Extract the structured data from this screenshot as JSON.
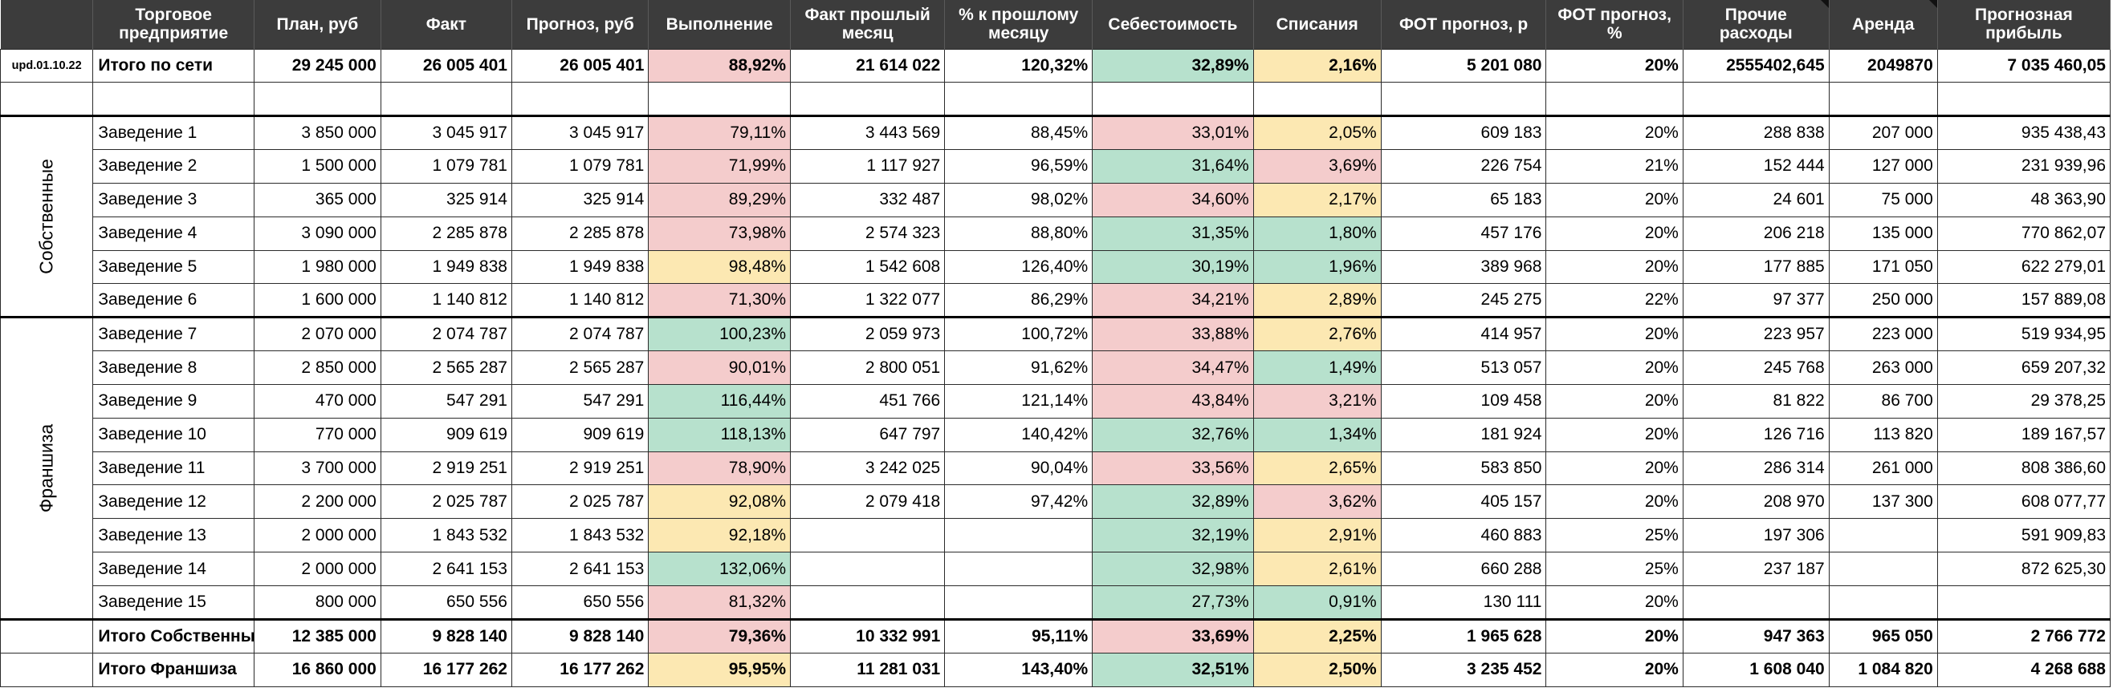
{
  "headers": [
    "",
    "Торговое предприятие",
    "План, руб",
    "Факт",
    "Прогноз, руб",
    "Выполнение",
    "Факт прошлый месяц",
    "% к прошлому месяцу",
    "Себестоимость",
    "Списания",
    "ФОТ прогноз, р",
    "ФОТ прогноз, %",
    "Прочие расходы",
    "Аренда",
    "Прогнозная прибыль"
  ],
  "total": {
    "upd": "upd.01.10.22",
    "cells": [
      "Итого по сети",
      "29 245 000",
      "26 005 401",
      "26 005 401",
      "88,92%",
      "21 614 022",
      "120,32%",
      "32,89%",
      "2,16%",
      "5 201 080",
      "20%",
      "2555402,645",
      "2049870",
      "7 035 460,05"
    ]
  },
  "groups": [
    {
      "label": "Собственные",
      "rows": [
        [
          "Заведение 1",
          "3 850 000",
          "3 045 917",
          "3 045 917",
          "79,11%",
          "3 443 569",
          "88,45%",
          "33,01%",
          "2,05%",
          "609 183",
          "20%",
          "288 838",
          "207 000",
          "935 438,43"
        ],
        [
          "Заведение 2",
          "1 500 000",
          "1 079 781",
          "1 079 781",
          "71,99%",
          "1 117 927",
          "96,59%",
          "31,64%",
          "3,69%",
          "226 754",
          "21%",
          "152 444",
          "127 000",
          "231 939,96"
        ],
        [
          "Заведение 3",
          "365 000",
          "325 914",
          "325 914",
          "89,29%",
          "332 487",
          "98,02%",
          "34,60%",
          "2,17%",
          "65 183",
          "20%",
          "24 601",
          "75 000",
          "48 363,90"
        ],
        [
          "Заведение 4",
          "3 090 000",
          "2 285 878",
          "2 285 878",
          "73,98%",
          "2 574 323",
          "88,80%",
          "31,35%",
          "1,80%",
          "457 176",
          "20%",
          "206 218",
          "135 000",
          "770 862,07"
        ],
        [
          "Заведение 5",
          "1 980 000",
          "1 949 838",
          "1 949 838",
          "98,48%",
          "1 542 608",
          "126,40%",
          "30,19%",
          "1,96%",
          "389 968",
          "20%",
          "177 885",
          "171 050",
          "622 279,01"
        ],
        [
          "Заведение 6",
          "1 600 000",
          "1 140 812",
          "1 140 812",
          "71,30%",
          "1 322 077",
          "86,29%",
          "34,21%",
          "2,89%",
          "245 275",
          "22%",
          "97 377",
          "250 000",
          "157 889,08"
        ]
      ]
    },
    {
      "label": "Франшиза",
      "rows": [
        [
          "Заведение 7",
          "2 070 000",
          "2 074 787",
          "2 074 787",
          "100,23%",
          "2 059 973",
          "100,72%",
          "33,88%",
          "2,76%",
          "414 957",
          "20%",
          "223 957",
          "223 000",
          "519 934,95"
        ],
        [
          "Заведение 8",
          "2 850 000",
          "2 565 287",
          "2 565 287",
          "90,01%",
          "2 800 051",
          "91,62%",
          "34,47%",
          "1,49%",
          "513 057",
          "20%",
          "245 768",
          "263 000",
          "659 207,32"
        ],
        [
          "Заведение 9",
          "470 000",
          "547 291",
          "547 291",
          "116,44%",
          "451 766",
          "121,14%",
          "43,84%",
          "3,21%",
          "109 458",
          "20%",
          "81 822",
          "86 700",
          "29 378,25"
        ],
        [
          "Заведение 10",
          "770 000",
          "909 619",
          "909 619",
          "118,13%",
          "647 797",
          "140,42%",
          "32,76%",
          "1,34%",
          "181 924",
          "20%",
          "126 716",
          "113 820",
          "189 167,57"
        ],
        [
          "Заведение 11",
          "3 700 000",
          "2 919 251",
          "2 919 251",
          "78,90%",
          "3 242 025",
          "90,04%",
          "33,56%",
          "2,65%",
          "583 850",
          "20%",
          "286 314",
          "261 000",
          "808 386,60"
        ],
        [
          "Заведение 12",
          "2 200 000",
          "2 025 787",
          "2 025 787",
          "92,08%",
          "2 079 418",
          "97,42%",
          "32,89%",
          "3,62%",
          "405 157",
          "20%",
          "208 970",
          "137 300",
          "608 077,77"
        ],
        [
          "Заведение 13",
          "2 000 000",
          "1 843 532",
          "1 843 532",
          "92,18%",
          "",
          "",
          "32,19%",
          "2,91%",
          "460 883",
          "25%",
          "197 306",
          "",
          "591 909,83"
        ],
        [
          "Заведение 14",
          "2 000 000",
          "2 641 153",
          "2 641 153",
          "132,06%",
          "",
          "",
          "32,98%",
          "2,61%",
          "660 288",
          "25%",
          "237 187",
          "",
          "872 625,30"
        ],
        [
          "Заведение 15",
          "800 000",
          "650 556",
          "650 556",
          "81,32%",
          "",
          "",
          "27,73%",
          "0,91%",
          "130 111",
          "20%",
          "",
          "",
          ""
        ]
      ]
    }
  ],
  "subtotals": [
    [
      "Итого Собственные",
      "12 385 000",
      "9 828 140",
      "9 828 140",
      "79,36%",
      "10 332 991",
      "95,11%",
      "33,69%",
      "2,25%",
      "1 965 628",
      "20%",
      "947 363",
      "965 050",
      "2 766 772"
    ],
    [
      "Итого Франшиза",
      "16 860 000",
      "16 177 262",
      "16 177 262",
      "95,95%",
      "11 281 031",
      "143,40%",
      "32,51%",
      "2,50%",
      "3 235 452",
      "20%",
      "1 608 040",
      "1 084 820",
      "4 268 688"
    ]
  ],
  "colors": {
    "green": "#b7e1cd",
    "red": "#f4cccc",
    "yellow": "#fce8b2",
    "header_bg": "#3c3c3c"
  },
  "fill_classes": {
    "total": [
      "",
      "",
      "",
      "",
      "r",
      "",
      "",
      "g",
      "y",
      "",
      "",
      "",
      "",
      ""
    ],
    "rows": [
      [
        "",
        "",
        "",
        "",
        "r",
        "",
        "",
        "r",
        "y",
        "",
        "",
        "",
        "",
        ""
      ],
      [
        "",
        "",
        "",
        "",
        "r",
        "",
        "",
        "g",
        "r",
        "",
        "",
        "",
        "",
        ""
      ],
      [
        "",
        "",
        "",
        "",
        "r",
        "",
        "",
        "r",
        "y",
        "",
        "",
        "",
        "",
        ""
      ],
      [
        "",
        "",
        "",
        "",
        "r",
        "",
        "",
        "g",
        "g",
        "",
        "",
        "",
        "",
        ""
      ],
      [
        "",
        "",
        "",
        "",
        "y",
        "",
        "",
        "g",
        "g",
        "",
        "",
        "",
        "",
        ""
      ],
      [
        "",
        "",
        "",
        "",
        "r",
        "",
        "",
        "r",
        "y",
        "",
        "",
        "",
        "",
        ""
      ],
      [
        "",
        "",
        "",
        "",
        "g",
        "",
        "",
        "r",
        "y",
        "",
        "",
        "",
        "",
        ""
      ],
      [
        "",
        "",
        "",
        "",
        "r",
        "",
        "",
        "r",
        "g",
        "",
        "",
        "",
        "",
        ""
      ],
      [
        "",
        "",
        "",
        "",
        "g",
        "",
        "",
        "r",
        "r",
        "",
        "",
        "",
        "",
        ""
      ],
      [
        "",
        "",
        "",
        "",
        "g",
        "",
        "",
        "g",
        "g",
        "",
        "",
        "",
        "",
        ""
      ],
      [
        "",
        "",
        "",
        "",
        "r",
        "",
        "",
        "r",
        "y",
        "",
        "",
        "",
        "",
        ""
      ],
      [
        "",
        "",
        "",
        "",
        "y",
        "",
        "",
        "g",
        "r",
        "",
        "",
        "",
        "",
        ""
      ],
      [
        "",
        "",
        "",
        "",
        "y",
        "",
        "",
        "g",
        "y",
        "",
        "",
        "",
        "",
        ""
      ],
      [
        "",
        "",
        "",
        "",
        "g",
        "",
        "",
        "g",
        "y",
        "",
        "",
        "",
        "",
        ""
      ],
      [
        "",
        "",
        "",
        "",
        "r",
        "",
        "",
        "g",
        "g",
        "",
        "",
        "",
        "",
        ""
      ]
    ],
    "subtotals": [
      [
        "",
        "",
        "",
        "",
        "r",
        "",
        "",
        "r",
        "y",
        "",
        "",
        "",
        "",
        ""
      ],
      [
        "",
        "",
        "",
        "",
        "y",
        "",
        "",
        "g",
        "y",
        "",
        "",
        "",
        "",
        ""
      ]
    ]
  }
}
